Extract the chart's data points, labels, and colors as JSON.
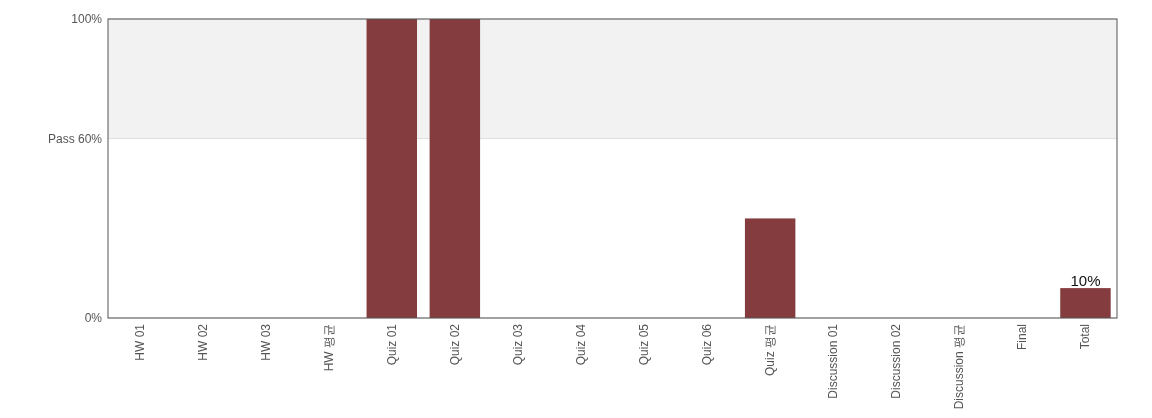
{
  "chart_data": {
    "type": "bar",
    "categories": [
      "HW 01",
      "HW 02",
      "HW 03",
      "HW 평균",
      "Quiz 01",
      "Quiz 02",
      "Quiz 03",
      "Quiz 04",
      "Quiz 05",
      "Quiz 06",
      "Quiz 평균",
      "Discussion 01",
      "Discussion 02",
      "Discussion 평균",
      "Final",
      "Total"
    ],
    "values": [
      0,
      0,
      0,
      0,
      100,
      100,
      0,
      0,
      0,
      0,
      33.3,
      0,
      0,
      0,
      0,
      10
    ],
    "value_labels": [
      null,
      null,
      null,
      null,
      null,
      null,
      null,
      null,
      null,
      null,
      null,
      null,
      null,
      null,
      null,
      "10%"
    ],
    "color": "#843c3f",
    "ylim": [
      0,
      100
    ],
    "yticks": [
      {
        "value": 0,
        "label": "0%"
      },
      {
        "value": 60,
        "label": "Pass 60%"
      },
      {
        "value": 100,
        "label": "100%"
      }
    ],
    "bands": [
      {
        "axis": "y",
        "from": 60,
        "to": 100,
        "color": "#f2f2f2"
      }
    ],
    "grid": "y"
  }
}
